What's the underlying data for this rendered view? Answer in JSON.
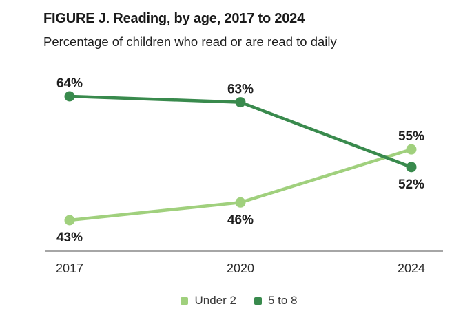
{
  "figure": {
    "title": "FIGURE J. Reading, by age, 2017 to 2024",
    "subtitle": "Percentage of children who read or are read to daily"
  },
  "colors": {
    "under2": "#a0d07d",
    "fiveTo8": "#398a4d",
    "axis_line": "#a6a6a6",
    "data_label": "#1f1f1f",
    "axis_label": "#2b2b2b",
    "legend_text": "#3a3a3a"
  },
  "chart_data": {
    "type": "line",
    "title": "FIGURE J. Reading, by age, 2017 to 2024",
    "subtitle": "Percentage of children who read or are read to daily",
    "categories": [
      "2017",
      "2020",
      "2024"
    ],
    "series": [
      {
        "name": "Under 2",
        "values": [
          43,
          46,
          55
        ],
        "color_key": "under2",
        "label_positions": [
          "below",
          "below",
          "above"
        ]
      },
      {
        "name": "5 to 8",
        "values": [
          64,
          63,
          52
        ],
        "color_key": "fiveTo8",
        "label_positions": [
          "above",
          "above",
          "below"
        ]
      }
    ],
    "value_suffix": "%",
    "xlabel": "",
    "ylabel": "",
    "ylim": [
      38,
      69
    ],
    "grid": false,
    "legend_position": "bottom",
    "markers": "circle",
    "data_labels_shown": true
  }
}
